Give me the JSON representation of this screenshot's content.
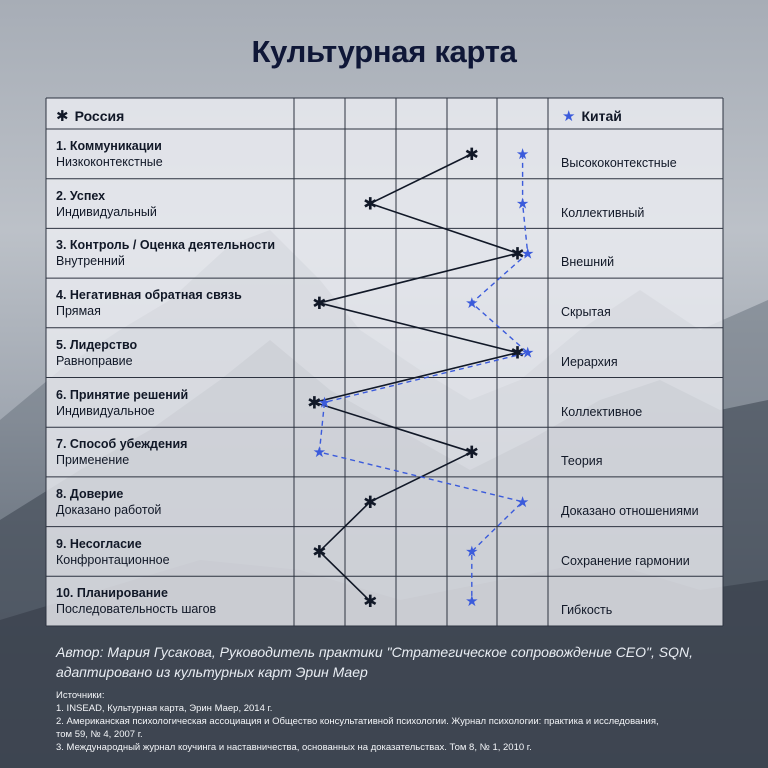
{
  "title": "Культурная карта",
  "legend": {
    "left": {
      "icon": "✱",
      "label": "Россия"
    },
    "right": {
      "icon": "★",
      "label": "Китай"
    }
  },
  "chart_data": {
    "type": "line",
    "scale_columns": 5,
    "x_range": [
      0,
      5
    ],
    "categories": [
      {
        "title": "1. Коммуникации",
        "left": "Низкоконтекстные",
        "right": "Высококонтекстные"
      },
      {
        "title": "2. Успех",
        "left": "Индивидуальный",
        "right": "Коллективный"
      },
      {
        "title": "3. Контроль / Оценка деятельности",
        "left": "Внутренний",
        "right": "Внешний"
      },
      {
        "title": "4. Негативная обратная связь",
        "left": "Прямая",
        "right": "Скрытая"
      },
      {
        "title": "5. Лидерство",
        "left": "Равноправие",
        "right": "Иерархия"
      },
      {
        "title": "6. Принятие решений",
        "left": "Индивидуальное",
        "right": "Коллективное"
      },
      {
        "title": "7. Способ убеждения",
        "left": "Применение",
        "right": "Теория"
      },
      {
        "title": "8. Доверие",
        "left": "Доказано работой",
        "right": "Доказано отношениями"
      },
      {
        "title": "9. Несогласие",
        "left": "Конфронтационное",
        "right": "Сохранение гармонии"
      },
      {
        "title": "10. Планирование",
        "left": "Последовательность шагов",
        "right": "Гибкость"
      }
    ],
    "series": [
      {
        "name": "Россия",
        "marker": "asterisk",
        "line": "solid",
        "color": "#111827",
        "values": [
          3.5,
          1.5,
          4.4,
          0.5,
          4.4,
          0.4,
          3.5,
          1.5,
          0.5,
          1.5
        ]
      },
      {
        "name": "Китай",
        "marker": "star",
        "line": "dashed",
        "color": "#3b5bdb",
        "values": [
          4.5,
          4.5,
          4.6,
          3.5,
          4.6,
          0.6,
          0.5,
          4.5,
          3.5,
          3.5
        ]
      }
    ]
  },
  "author": "Автор: Мария Гусакова, Руководитель практики \"Стратегическое сопровождение CEO\", SQN, адаптировано из культурных карт Эрин Маер",
  "sources_title": "Источники:",
  "sources": [
    "1.  INSEAD, Культурная карта, Эрин Маер, 2014 г.",
    "2. Американская психологическая ассоциация и Общество консультативной психологии. Журнал психологии: практика и исследования,",
    "     том 59, № 4, 2007 г.",
    "3. Международный журнал коучинга и наставничества, основанных на доказательствах. Том 8, № 1, 2010 г."
  ]
}
